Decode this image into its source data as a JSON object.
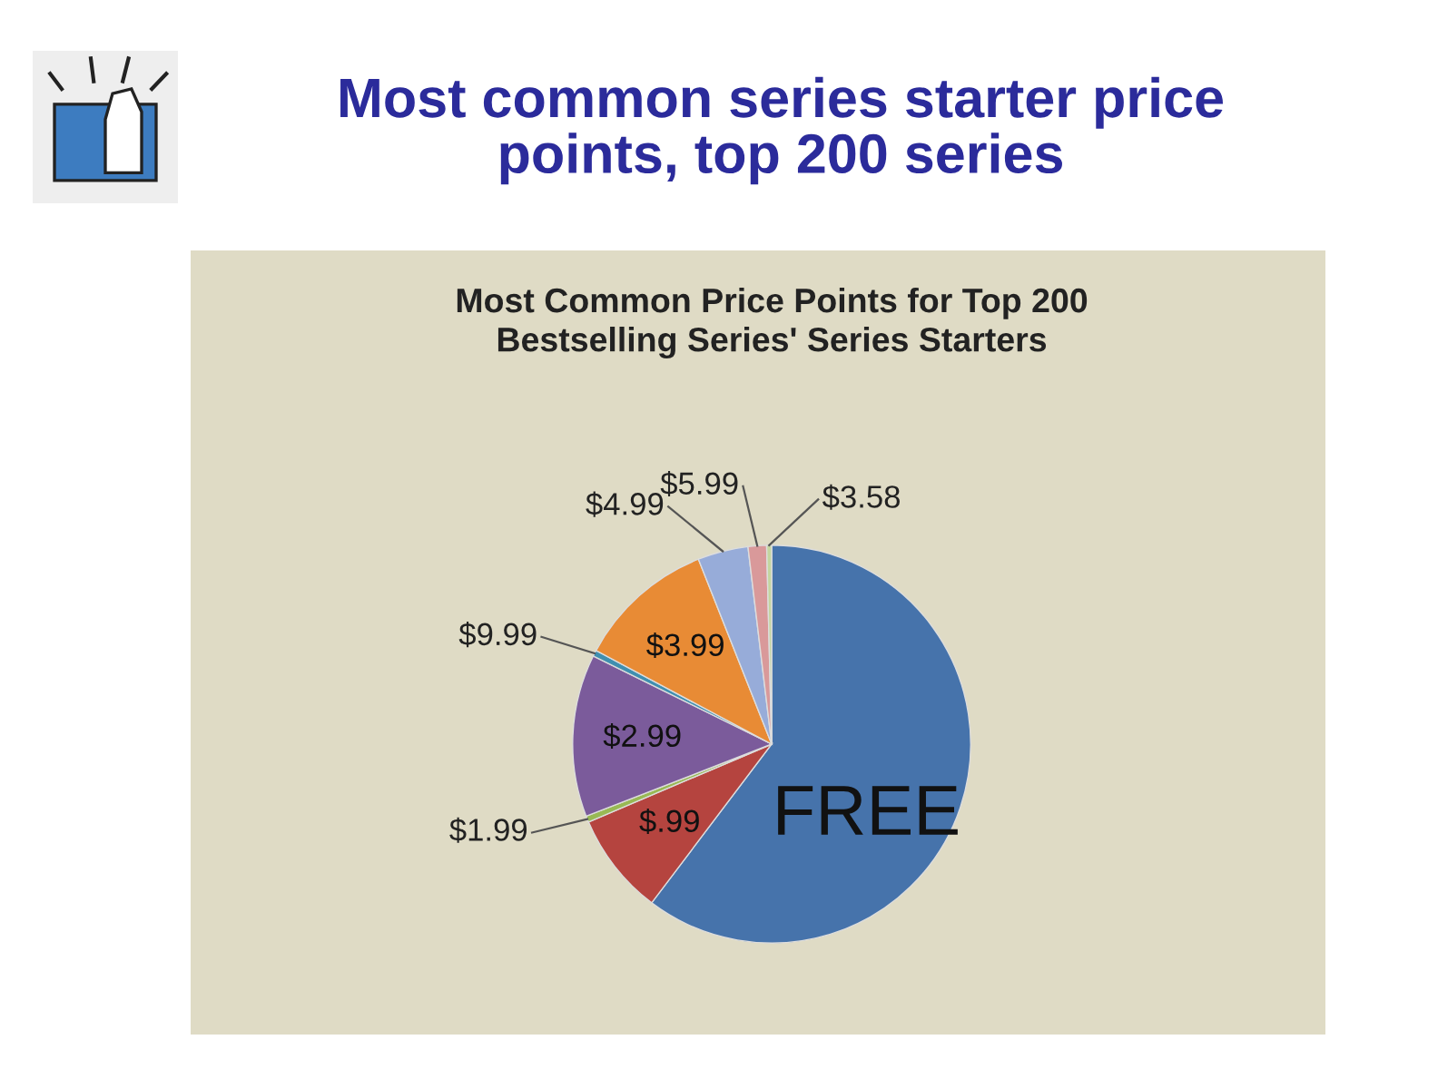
{
  "chart_data": {
    "type": "pie",
    "title": "Most common series starter price\npoints, top 200 series",
    "subtitle": "Most Common Price Points for Top 200\nBestselling Series' Series Starters",
    "categories": [
      "FREE",
      "$.99",
      "$1.99",
      "$2.99",
      "$9.99",
      "$3.99",
      "$4.99",
      "$5.99",
      "$3.58"
    ],
    "values": [
      60.3,
      8.3,
      0.5,
      13.2,
      0.5,
      11.2,
      4.1,
      1.5,
      0.4
    ],
    "colors": [
      "#4673ab",
      "#b5443f",
      "#98b954",
      "#7b5b9b",
      "#3f8fb0",
      "#e88b35",
      "#97acd9",
      "#d9999a",
      "#c4d6a0"
    ],
    "legend": false
  }
}
